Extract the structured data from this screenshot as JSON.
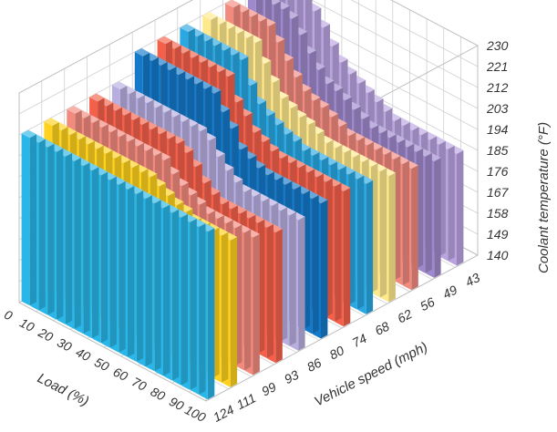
{
  "chart_data": {
    "type": "bar3d",
    "x_axis": {
      "title": "Vehicle speed (mph)",
      "categories": [
        "124",
        "111",
        "99",
        "93",
        "86",
        "80",
        "74",
        "68",
        "62",
        "56",
        "49",
        "43"
      ]
    },
    "y_axis": {
      "title": "Load (%)",
      "categories": [
        "0",
        "10",
        "20",
        "30",
        "40",
        "50",
        "60",
        "70",
        "80",
        "90",
        "100"
      ]
    },
    "z_axis": {
      "title": "Coolant temperature (°F)",
      "ticks": [
        "140",
        "149",
        "158",
        "167",
        "176",
        "185",
        "194",
        "203",
        "212",
        "221",
        "230"
      ],
      "range": [
        140,
        230
      ]
    },
    "row_colors": [
      "#29b6e8",
      "#ffd21f",
      "#f28a7e",
      "#f4604a",
      "#b8aee0",
      "#1479c8",
      "#f4604a",
      "#2aa8e4",
      "#ffe98c",
      "#f28a7e",
      "#9e89cc",
      "#b9a4e0"
    ],
    "values": [
      [
        212,
        212,
        212,
        212,
        212,
        212,
        212,
        212,
        212,
        212,
        212,
        212,
        212,
        212,
        212,
        212,
        212,
        212,
        212,
        212,
        212
      ],
      [
        212,
        212,
        212,
        212,
        212,
        212,
        212,
        212,
        212,
        212,
        212,
        212,
        210,
        208,
        206,
        205,
        203,
        203,
        203,
        203,
        203
      ],
      [
        212,
        212,
        212,
        212,
        212,
        212,
        212,
        212,
        212,
        212,
        212,
        208,
        205,
        203,
        201,
        199,
        199,
        199,
        199,
        199,
        199
      ],
      [
        212,
        212,
        212,
        212,
        212,
        212,
        212,
        212,
        212,
        212,
        210,
        206,
        201,
        198,
        196,
        196,
        196,
        196,
        196,
        196,
        196
      ],
      [
        212,
        212,
        212,
        212,
        212,
        212,
        212,
        212,
        212,
        212,
        210,
        205,
        201,
        198,
        196,
        196,
        196,
        196,
        196,
        196,
        196
      ],
      [
        221,
        221,
        221,
        221,
        221,
        221,
        221,
        221,
        221,
        215,
        210,
        203,
        201,
        199,
        198,
        198,
        198,
        198,
        198,
        198,
        198
      ],
      [
        221,
        221,
        221,
        221,
        221,
        221,
        221,
        221,
        212,
        208,
        203,
        201,
        199,
        198,
        198,
        198,
        198,
        198,
        198,
        198,
        198
      ],
      [
        221,
        221,
        221,
        221,
        221,
        221,
        221,
        212,
        206,
        203,
        201,
        199,
        198,
        196,
        196,
        196,
        196,
        196,
        196,
        196,
        196
      ],
      [
        221,
        221,
        221,
        221,
        221,
        221,
        214,
        208,
        203,
        201,
        199,
        198,
        196,
        194,
        194,
        194,
        194,
        194,
        194,
        194,
        194
      ],
      [
        221,
        221,
        221,
        221,
        221,
        216,
        210,
        205,
        201,
        199,
        198,
        196,
        194,
        192,
        192,
        192,
        192,
        192,
        192,
        192,
        192
      ],
      [
        221,
        221,
        221,
        221,
        219,
        214,
        208,
        203,
        199,
        198,
        196,
        194,
        192,
        190,
        190,
        190,
        190,
        190,
        190,
        190,
        190
      ],
      [
        221,
        221,
        221,
        221,
        217,
        212,
        206,
        201,
        198,
        196,
        194,
        192,
        190,
        188,
        188,
        188,
        188,
        188,
        188,
        188,
        188
      ]
    ]
  }
}
